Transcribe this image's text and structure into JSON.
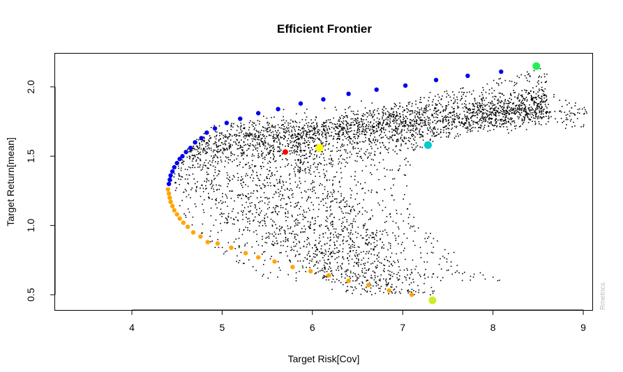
{
  "chart_data": {
    "type": "scatter",
    "title": "Efficient Frontier",
    "xlabel": "Target Risk[Cov]",
    "ylabel": "Target Return[mean]",
    "credit": "Rmetrics",
    "xlim": [
      3.15,
      9.1
    ],
    "ylim": [
      0.39,
      2.24
    ],
    "xticks": [
      4,
      5,
      6,
      7,
      8,
      9
    ],
    "yticks": [
      0.5,
      1.0,
      1.5,
      2.0
    ],
    "ytick_labels": [
      "0.5",
      "1.0",
      "1.5",
      "2.0"
    ],
    "grid": false,
    "legend": "none",
    "colors": {
      "cloud": "#000000",
      "frontier_upper": "#0000ee",
      "frontier_lower": "#ffa500",
      "tangency": "#ff0000",
      "equal_weights": "#ffff00",
      "min_return_asset": "#ccee22",
      "max_return_asset": "#22ee55",
      "mid_asset": "#00cccc",
      "credit": "#bbbbbb"
    },
    "random_cloud_description": "Monte Carlo portfolios (small black points) spread between the frontier and the individual assets",
    "series": [
      {
        "key": "frontier_upper",
        "points": [
          [
            4.41,
            1.3
          ],
          [
            4.42,
            1.33
          ],
          [
            4.43,
            1.36
          ],
          [
            4.45,
            1.39
          ],
          [
            4.47,
            1.42
          ],
          [
            4.5,
            1.45
          ],
          [
            4.53,
            1.48
          ],
          [
            4.56,
            1.5
          ],
          [
            4.6,
            1.53
          ],
          [
            4.65,
            1.56
          ],
          [
            4.7,
            1.6
          ],
          [
            4.77,
            1.63
          ],
          [
            4.83,
            1.67
          ],
          [
            4.92,
            1.7
          ],
          [
            5.05,
            1.74
          ],
          [
            5.2,
            1.77
          ],
          [
            5.4,
            1.81
          ],
          [
            5.62,
            1.84
          ],
          [
            5.87,
            1.88
          ],
          [
            6.12,
            1.91
          ],
          [
            6.4,
            1.95
          ],
          [
            6.71,
            1.98
          ],
          [
            7.03,
            2.01
          ],
          [
            7.37,
            2.05
          ],
          [
            7.72,
            2.08
          ],
          [
            8.09,
            2.11
          ]
        ]
      },
      {
        "key": "frontier_lower",
        "points": [
          [
            4.4,
            1.26
          ],
          [
            4.41,
            1.23
          ],
          [
            4.42,
            1.2
          ],
          [
            4.43,
            1.17
          ],
          [
            4.45,
            1.14
          ],
          [
            4.47,
            1.11
          ],
          [
            4.5,
            1.08
          ],
          [
            4.53,
            1.05
          ],
          [
            4.57,
            1.02
          ],
          [
            4.62,
            0.99
          ],
          [
            4.68,
            0.95
          ],
          [
            4.76,
            0.92
          ],
          [
            4.84,
            0.88
          ],
          [
            4.95,
            0.87
          ],
          [
            5.1,
            0.84
          ],
          [
            5.26,
            0.8
          ],
          [
            5.4,
            0.77
          ],
          [
            5.58,
            0.74
          ],
          [
            5.78,
            0.7
          ],
          [
            5.98,
            0.67
          ],
          [
            6.18,
            0.64
          ],
          [
            6.4,
            0.6
          ],
          [
            6.62,
            0.57
          ],
          [
            6.85,
            0.53
          ],
          [
            7.1,
            0.5
          ]
        ]
      },
      {
        "key": "tangency",
        "points": [
          [
            5.7,
            1.53
          ]
        ]
      },
      {
        "key": "equal_weights",
        "points": [
          [
            6.08,
            1.56
          ]
        ]
      },
      {
        "key": "mid_asset",
        "points": [
          [
            7.28,
            1.58
          ]
        ]
      },
      {
        "key": "min_return_asset",
        "points": [
          [
            7.33,
            0.46
          ]
        ]
      },
      {
        "key": "max_return_asset",
        "points": [
          [
            8.48,
            2.15
          ]
        ]
      }
    ]
  }
}
